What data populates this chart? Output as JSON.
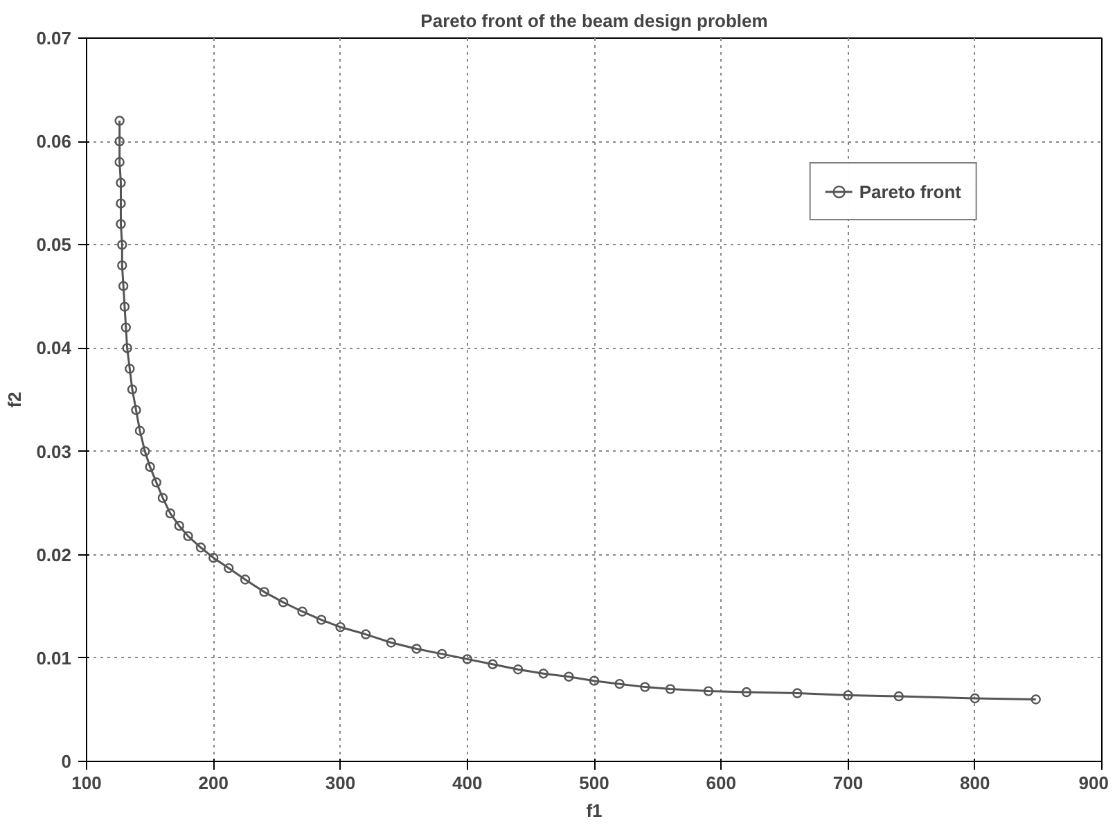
{
  "chart_data": {
    "type": "line",
    "title": "Pareto front of the beam design problem",
    "xlabel": "f1",
    "ylabel": "f2",
    "xlim": [
      100,
      900
    ],
    "ylim": [
      0,
      0.07
    ],
    "xticks": [
      100,
      200,
      300,
      400,
      500,
      600,
      700,
      800,
      900
    ],
    "yticks": [
      {
        "value": 0,
        "label": "0"
      },
      {
        "value": 0.01,
        "label": "0.01"
      },
      {
        "value": 0.02,
        "label": "0.02"
      },
      {
        "value": 0.03,
        "label": "0.03"
      },
      {
        "value": 0.04,
        "label": "0.04"
      },
      {
        "value": 0.05,
        "label": "0.05"
      },
      {
        "value": 0.06,
        "label": "0.06"
      },
      {
        "value": 0.07,
        "label": "0.07"
      }
    ],
    "grid": true,
    "legend": "top right",
    "marker": "circle",
    "line_style": "solid",
    "series": [
      {
        "name": "Pareto front",
        "color": "#555555",
        "x": [
          126,
          126,
          126,
          127,
          127,
          127,
          128,
          128,
          129,
          130,
          131,
          132,
          134,
          136,
          139,
          142,
          146,
          150,
          155,
          160,
          166,
          173,
          180,
          190,
          200,
          212,
          225,
          240,
          255,
          270,
          285,
          300,
          320,
          340,
          360,
          380,
          400,
          420,
          440,
          460,
          480,
          500,
          520,
          540,
          560,
          590,
          620,
          660,
          700,
          740,
          800,
          848
        ],
        "values": [
          0.062,
          0.06,
          0.058,
          0.056,
          0.054,
          0.052,
          0.05,
          0.048,
          0.046,
          0.044,
          0.042,
          0.04,
          0.038,
          0.036,
          0.034,
          0.032,
          0.03,
          0.0285,
          0.027,
          0.0255,
          0.024,
          0.0228,
          0.0218,
          0.0207,
          0.0197,
          0.0187,
          0.0176,
          0.0164,
          0.0154,
          0.0145,
          0.0137,
          0.013,
          0.0123,
          0.0115,
          0.0109,
          0.0104,
          0.0099,
          0.0094,
          0.0089,
          0.0085,
          0.0082,
          0.0078,
          0.0075,
          0.0072,
          0.007,
          0.0068,
          0.0067,
          0.0066,
          0.0064,
          0.0063,
          0.0061,
          0.006
        ]
      }
    ]
  }
}
